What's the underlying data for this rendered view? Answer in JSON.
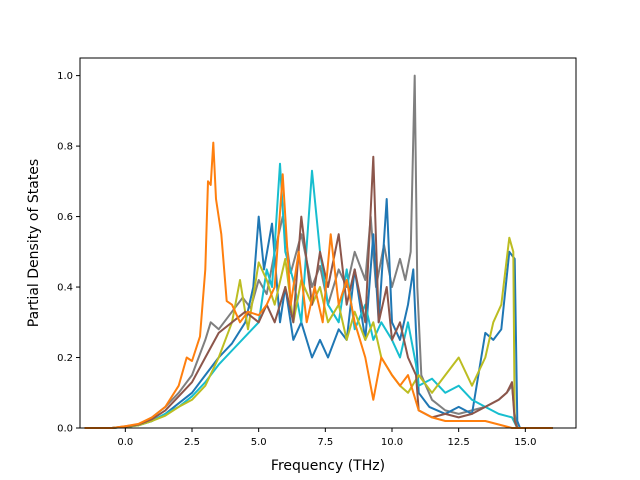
{
  "chart_data": {
    "type": "line",
    "title": "",
    "xlabel": "Frequency (THz)",
    "ylabel": "Partial Density of States",
    "xlim": [
      -1.7,
      16.9
    ],
    "ylim": [
      0,
      1.05
    ],
    "xticks": [
      0.0,
      2.5,
      5.0,
      7.5,
      10.0,
      12.5,
      15.0
    ],
    "xtick_labels": [
      "0.0",
      "2.5",
      "5.0",
      "7.5",
      "10.0",
      "12.5",
      "15.0"
    ],
    "yticks": [
      0.0,
      0.2,
      0.4,
      0.6,
      0.8,
      1.0
    ],
    "ytick_labels": [
      "0.0",
      "0.2",
      "0.4",
      "0.6",
      "0.8",
      "1.0"
    ],
    "grid": false,
    "legend": "none",
    "series": [
      {
        "color": "#7f7f7f",
        "points": [
          [
            -1.5,
            0
          ],
          [
            -0.5,
            0
          ],
          [
            0,
            0.005
          ],
          [
            0.5,
            0.01
          ],
          [
            1,
            0.03
          ],
          [
            1.5,
            0.06
          ],
          [
            2,
            0.1
          ],
          [
            2.5,
            0.15
          ],
          [
            3,
            0.25
          ],
          [
            3.2,
            0.3
          ],
          [
            3.5,
            0.28
          ],
          [
            4,
            0.33
          ],
          [
            4.4,
            0.37
          ],
          [
            4.7,
            0.34
          ],
          [
            5,
            0.42
          ],
          [
            5.3,
            0.38
          ],
          [
            5.6,
            0.5
          ],
          [
            5.9,
            0.6
          ],
          [
            6.2,
            0.44
          ],
          [
            6.6,
            0.55
          ],
          [
            7,
            0.4
          ],
          [
            7.3,
            0.46
          ],
          [
            7.6,
            0.35
          ],
          [
            8,
            0.45
          ],
          [
            8.3,
            0.4
          ],
          [
            8.6,
            0.5
          ],
          [
            9,
            0.42
          ],
          [
            9.2,
            0.6
          ],
          [
            9.4,
            0.4
          ],
          [
            9.7,
            0.52
          ],
          [
            10,
            0.4
          ],
          [
            10.3,
            0.48
          ],
          [
            10.5,
            0.42
          ],
          [
            10.7,
            0.5
          ],
          [
            10.85,
            1.0
          ],
          [
            10.95,
            0.4
          ],
          [
            11.1,
            0.15
          ],
          [
            11.5,
            0.08
          ],
          [
            12,
            0.05
          ],
          [
            12.5,
            0.04
          ],
          [
            13,
            0.05
          ],
          [
            13.5,
            0.06
          ],
          [
            14,
            0.08
          ],
          [
            14.3,
            0.1
          ],
          [
            14.5,
            0.12
          ],
          [
            14.6,
            0.04
          ],
          [
            14.7,
            0
          ],
          [
            16,
            0
          ]
        ]
      },
      {
        "color": "#1f77b4",
        "points": [
          [
            -1.5,
            0
          ],
          [
            -0.5,
            0
          ],
          [
            0,
            0.003
          ],
          [
            0.5,
            0.008
          ],
          [
            1,
            0.02
          ],
          [
            1.5,
            0.04
          ],
          [
            2,
            0.07
          ],
          [
            2.5,
            0.1
          ],
          [
            3,
            0.15
          ],
          [
            3.5,
            0.2
          ],
          [
            4,
            0.24
          ],
          [
            4.5,
            0.3
          ],
          [
            4.8,
            0.4
          ],
          [
            5,
            0.6
          ],
          [
            5.2,
            0.45
          ],
          [
            5.5,
            0.58
          ],
          [
            5.8,
            0.3
          ],
          [
            6,
            0.4
          ],
          [
            6.3,
            0.25
          ],
          [
            6.6,
            0.3
          ],
          [
            7,
            0.2
          ],
          [
            7.3,
            0.25
          ],
          [
            7.6,
            0.2
          ],
          [
            8,
            0.28
          ],
          [
            8.3,
            0.25
          ],
          [
            8.6,
            0.45
          ],
          [
            9,
            0.25
          ],
          [
            9.3,
            0.55
          ],
          [
            9.5,
            0.3
          ],
          [
            9.8,
            0.65
          ],
          [
            10,
            0.3
          ],
          [
            10.3,
            0.25
          ],
          [
            10.6,
            0.35
          ],
          [
            10.8,
            0.45
          ],
          [
            11,
            0.1
          ],
          [
            11.4,
            0.06
          ],
          [
            12,
            0.04
          ],
          [
            12.5,
            0.06
          ],
          [
            13,
            0.04
          ],
          [
            13.5,
            0.27
          ],
          [
            13.8,
            0.25
          ],
          [
            14.1,
            0.28
          ],
          [
            14.4,
            0.5
          ],
          [
            14.6,
            0.48
          ],
          [
            14.7,
            0.02
          ],
          [
            14.8,
            0
          ],
          [
            16,
            0
          ]
        ]
      },
      {
        "color": "#17becf",
        "points": [
          [
            -1.5,
            0
          ],
          [
            -0.5,
            0
          ],
          [
            0,
            0.003
          ],
          [
            0.5,
            0.008
          ],
          [
            1,
            0.02
          ],
          [
            1.5,
            0.04
          ],
          [
            2,
            0.06
          ],
          [
            2.5,
            0.09
          ],
          [
            3,
            0.13
          ],
          [
            3.5,
            0.18
          ],
          [
            4,
            0.22
          ],
          [
            4.5,
            0.26
          ],
          [
            5,
            0.3
          ],
          [
            5.3,
            0.45
          ],
          [
            5.5,
            0.4
          ],
          [
            5.8,
            0.75
          ],
          [
            6,
            0.5
          ],
          [
            6.3,
            0.42
          ],
          [
            6.6,
            0.3
          ],
          [
            7,
            0.73
          ],
          [
            7.3,
            0.5
          ],
          [
            7.6,
            0.35
          ],
          [
            8,
            0.3
          ],
          [
            8.3,
            0.45
          ],
          [
            8.6,
            0.28
          ],
          [
            9,
            0.35
          ],
          [
            9.3,
            0.25
          ],
          [
            9.6,
            0.3
          ],
          [
            10,
            0.25
          ],
          [
            10.3,
            0.2
          ],
          [
            10.6,
            0.3
          ],
          [
            10.9,
            0.18
          ],
          [
            11,
            0.12
          ],
          [
            11.5,
            0.14
          ],
          [
            12,
            0.1
          ],
          [
            12.5,
            0.12
          ],
          [
            13,
            0.08
          ],
          [
            13.5,
            0.06
          ],
          [
            14,
            0.04
          ],
          [
            14.5,
            0.03
          ],
          [
            14.7,
            0
          ],
          [
            16,
            0
          ]
        ]
      },
      {
        "color": "#bcbd22",
        "points": [
          [
            -1.5,
            0
          ],
          [
            -0.5,
            0
          ],
          [
            0,
            0.003
          ],
          [
            0.5,
            0.008
          ],
          [
            1,
            0.02
          ],
          [
            1.5,
            0.035
          ],
          [
            2,
            0.06
          ],
          [
            2.5,
            0.08
          ],
          [
            3,
            0.12
          ],
          [
            3.5,
            0.2
          ],
          [
            4,
            0.3
          ],
          [
            4.3,
            0.42
          ],
          [
            4.6,
            0.28
          ],
          [
            5,
            0.47
          ],
          [
            5.3,
            0.42
          ],
          [
            5.6,
            0.35
          ],
          [
            6,
            0.48
          ],
          [
            6.3,
            0.3
          ],
          [
            6.6,
            0.42
          ],
          [
            7,
            0.35
          ],
          [
            7.3,
            0.4
          ],
          [
            7.6,
            0.3
          ],
          [
            8,
            0.35
          ],
          [
            8.3,
            0.25
          ],
          [
            8.6,
            0.33
          ],
          [
            9,
            0.25
          ],
          [
            9.3,
            0.3
          ],
          [
            9.6,
            0.2
          ],
          [
            10,
            0.15
          ],
          [
            10.3,
            0.12
          ],
          [
            10.6,
            0.1
          ],
          [
            11,
            0.15
          ],
          [
            11.5,
            0.1
          ],
          [
            12,
            0.15
          ],
          [
            12.5,
            0.2
          ],
          [
            13,
            0.12
          ],
          [
            13.5,
            0.2
          ],
          [
            13.8,
            0.3
          ],
          [
            14.1,
            0.35
          ],
          [
            14.4,
            0.54
          ],
          [
            14.55,
            0.5
          ],
          [
            14.6,
            0.02
          ],
          [
            14.7,
            0
          ],
          [
            16,
            0
          ]
        ]
      },
      {
        "color": "#8c564b",
        "points": [
          [
            -1.5,
            0
          ],
          [
            -0.5,
            0
          ],
          [
            0,
            0.004
          ],
          [
            0.5,
            0.01
          ],
          [
            1,
            0.025
          ],
          [
            1.5,
            0.05
          ],
          [
            2,
            0.09
          ],
          [
            2.5,
            0.13
          ],
          [
            3,
            0.2
          ],
          [
            3.5,
            0.27
          ],
          [
            4,
            0.3
          ],
          [
            4.5,
            0.33
          ],
          [
            5,
            0.3
          ],
          [
            5.3,
            0.35
          ],
          [
            5.6,
            0.3
          ],
          [
            6,
            0.4
          ],
          [
            6.3,
            0.3
          ],
          [
            6.6,
            0.6
          ],
          [
            7,
            0.35
          ],
          [
            7.3,
            0.5
          ],
          [
            7.6,
            0.4
          ],
          [
            8,
            0.55
          ],
          [
            8.3,
            0.35
          ],
          [
            8.6,
            0.45
          ],
          [
            9,
            0.3
          ],
          [
            9.3,
            0.77
          ],
          [
            9.5,
            0.3
          ],
          [
            9.8,
            0.4
          ],
          [
            10,
            0.25
          ],
          [
            10.3,
            0.3
          ],
          [
            10.6,
            0.2
          ],
          [
            10.9,
            0.15
          ],
          [
            11,
            0.05
          ],
          [
            11.5,
            0.03
          ],
          [
            12,
            0.04
          ],
          [
            12.5,
            0.03
          ],
          [
            13,
            0.04
          ],
          [
            13.5,
            0.06
          ],
          [
            14,
            0.08
          ],
          [
            14.3,
            0.1
          ],
          [
            14.5,
            0.13
          ],
          [
            14.6,
            0.02
          ],
          [
            14.7,
            0
          ],
          [
            16,
            0
          ]
        ]
      },
      {
        "color": "#ff7f0e",
        "points": [
          [
            -1.5,
            0
          ],
          [
            -0.5,
            0
          ],
          [
            0,
            0.005
          ],
          [
            0.5,
            0.012
          ],
          [
            1,
            0.03
          ],
          [
            1.5,
            0.06
          ],
          [
            2,
            0.12
          ],
          [
            2.3,
            0.2
          ],
          [
            2.5,
            0.19
          ],
          [
            2.8,
            0.26
          ],
          [
            3,
            0.45
          ],
          [
            3.1,
            0.7
          ],
          [
            3.2,
            0.69
          ],
          [
            3.3,
            0.81
          ],
          [
            3.4,
            0.65
          ],
          [
            3.6,
            0.55
          ],
          [
            3.8,
            0.36
          ],
          [
            4,
            0.35
          ],
          [
            4.3,
            0.3
          ],
          [
            4.6,
            0.33
          ],
          [
            5,
            0.32
          ],
          [
            5.3,
            0.35
          ],
          [
            5.6,
            0.4
          ],
          [
            5.9,
            0.72
          ],
          [
            6.2,
            0.35
          ],
          [
            6.5,
            0.5
          ],
          [
            6.8,
            0.3
          ],
          [
            7.1,
            0.4
          ],
          [
            7.4,
            0.3
          ],
          [
            7.7,
            0.55
          ],
          [
            8,
            0.35
          ],
          [
            8.3,
            0.42
          ],
          [
            8.6,
            0.3
          ],
          [
            9,
            0.2
          ],
          [
            9.3,
            0.08
          ],
          [
            9.6,
            0.2
          ],
          [
            10,
            0.15
          ],
          [
            10.3,
            0.12
          ],
          [
            10.6,
            0.15
          ],
          [
            11,
            0.05
          ],
          [
            11.5,
            0.03
          ],
          [
            12,
            0.02
          ],
          [
            12.5,
            0.02
          ],
          [
            13,
            0.02
          ],
          [
            13.5,
            0.02
          ],
          [
            14,
            0.01
          ],
          [
            14.5,
            0
          ],
          [
            16,
            0
          ]
        ]
      }
    ]
  }
}
